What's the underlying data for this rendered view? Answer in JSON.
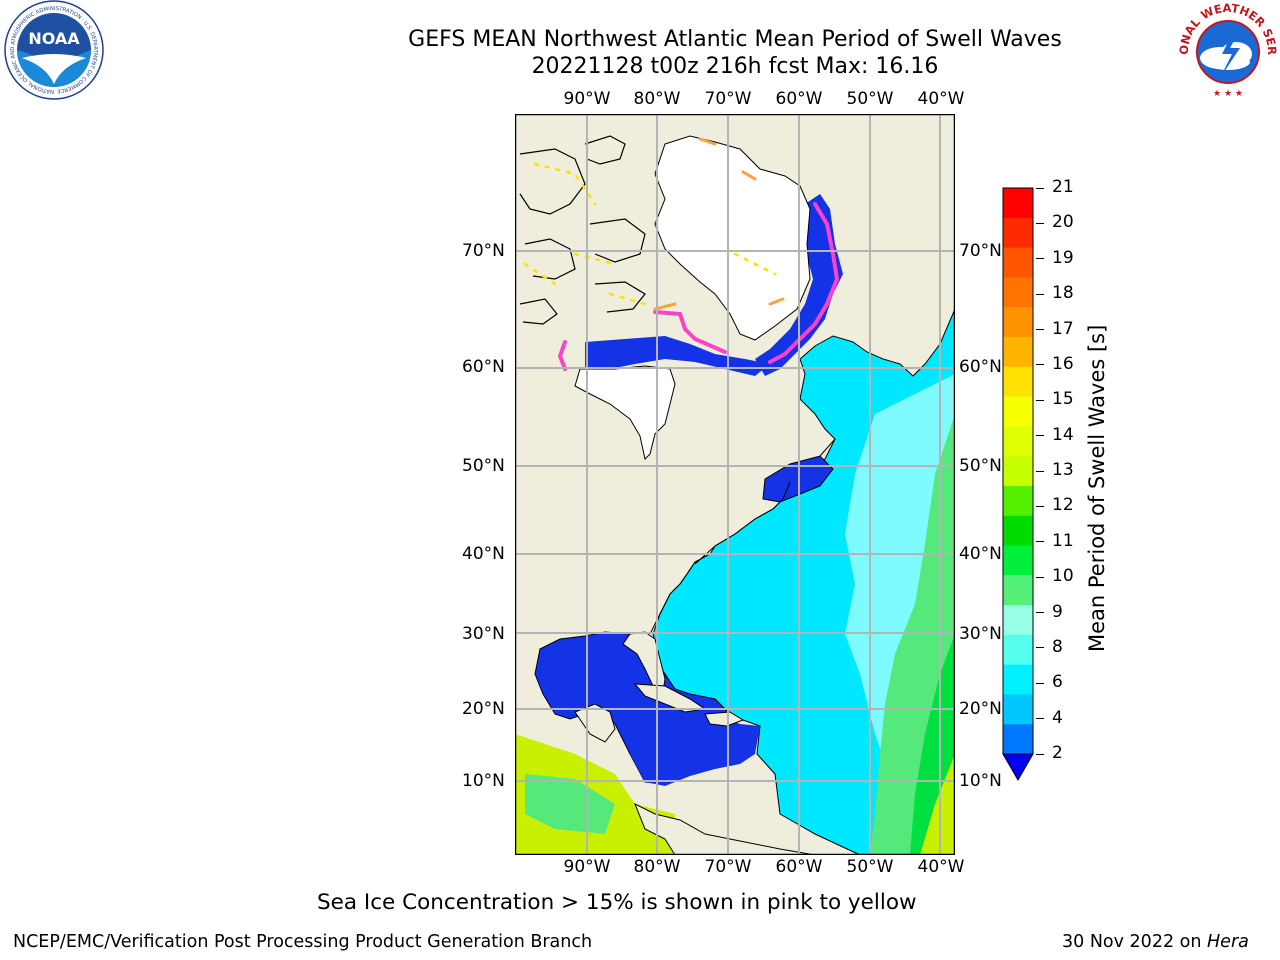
{
  "title": {
    "line1": "GEFS MEAN Northwest Atlantic Mean Period of Swell Waves",
    "line2": "20221128 t00z 216h fcst   Max: 16.16"
  },
  "map": {
    "lon_labels": [
      "90°W",
      "80°W",
      "70°W",
      "60°W",
      "50°W",
      "40°W"
    ],
    "lat_labels_left": [
      "70°N",
      "60°N",
      "50°N",
      "40°N",
      "30°N",
      "20°N",
      "10°N"
    ],
    "lat_labels_right": [
      "70°N",
      "60°N",
      "50°N",
      "40°N",
      "30°N",
      "20°N",
      "10°N"
    ],
    "colors": {
      "land": "#efeedd",
      "ocean_dark": "#1432e6",
      "ocean_cyan": "#00e8ff",
      "ocean_lightcyan": "#7ffaff",
      "ocean_green": "#55e87a",
      "ocean_yellowgreen": "#c8f000",
      "ice_pink": "#ff40c8",
      "ice_orange": "#ffa040"
    }
  },
  "colorbar": {
    "title": "Mean Period of Swell Waves [s]",
    "ticks": [
      "21",
      "20",
      "19",
      "18",
      "17",
      "16",
      "15",
      "14",
      "13",
      "12",
      "11",
      "10",
      "9",
      "8",
      "6",
      "4",
      "2"
    ],
    "colors_top_to_bottom": [
      "#ff0000",
      "#ff2a00",
      "#ff5500",
      "#ff7400",
      "#ff9200",
      "#ffb400",
      "#ffe100",
      "#f5ff00",
      "#e0ff00",
      "#c6ff00",
      "#55f000",
      "#00dc00",
      "#00f03c",
      "#55f07a",
      "#96ffe6",
      "#55fff0",
      "#00f0ff",
      "#00c8ff",
      "#0078ff",
      "#0000f0"
    ]
  },
  "note": "Sea Ice Concentration > 15% is shown in pink to yellow",
  "footer": {
    "left": "NCEP/EMC/Verification Post Processing Product Generation Branch",
    "right_prefix": "30 Nov 2022 on ",
    "right_host": "Hera"
  },
  "logos": {
    "noaa_text": "NOAA",
    "noaa_ring_text": "NATIONAL OCEANIC AND ATMOSPHERIC ADMINISTRATION · U.S. DEPARTMENT OF COMMERCE",
    "nws_ring_text": "NATIONAL WEATHER SERVICE"
  }
}
